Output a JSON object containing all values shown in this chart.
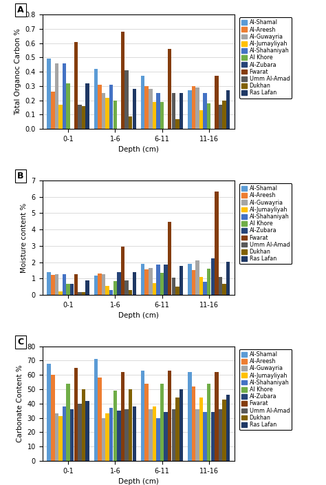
{
  "locations": [
    "Al-Shamal",
    "Al-Areesh",
    "Al-Guwayria",
    "Al-Jumayliyah",
    "Al-Shahaniyah",
    "Al Khore",
    "Al-Zubara",
    "Fwarat",
    "Umm Al-Amad",
    "Dukhan",
    "Ras Lafan"
  ],
  "colors": [
    "#5B9BD5",
    "#ED7D31",
    "#A5A5A5",
    "#FFC000",
    "#4472C4",
    "#70AD47",
    "#264478",
    "#843C0C",
    "#595959",
    "#806000",
    "#1F3864"
  ],
  "depths": [
    "0-1",
    "1-6",
    "6-11",
    "11-16"
  ],
  "chartA": {
    "title": "A",
    "ylabel": "Total Organoc Carbon %",
    "ylim": [
      0.0,
      0.8
    ],
    "yticks": [
      0.0,
      0.1,
      0.2,
      0.3,
      0.4,
      0.5,
      0.6,
      0.7,
      0.8
    ],
    "data": [
      [
        0.49,
        0.42,
        0.37,
        0.27
      ],
      [
        0.26,
        0.31,
        0.3,
        0.3
      ],
      [
        0.46,
        0.25,
        0.28,
        0.29
      ],
      [
        0.17,
        0.22,
        0.19,
        0.13
      ],
      [
        0.46,
        0.31,
        0.25,
        0.25
      ],
      [
        0.32,
        0.2,
        0.19,
        0.18
      ],
      [
        0.0,
        0.0,
        0.0,
        0.0
      ],
      [
        0.61,
        0.68,
        0.56,
        0.37
      ],
      [
        0.17,
        0.41,
        0.25,
        0.17
      ],
      [
        0.16,
        0.09,
        0.07,
        0.2
      ],
      [
        0.32,
        0.28,
        0.25,
        0.27
      ]
    ]
  },
  "chartB": {
    "title": "B",
    "ylabel": "Moisture content %",
    "ylim": [
      0,
      7
    ],
    "yticks": [
      0,
      1,
      2,
      3,
      4,
      5,
      6,
      7
    ],
    "data": [
      [
        1.38,
        1.2,
        1.9,
        1.9
      ],
      [
        1.22,
        1.3,
        1.55,
        1.52
      ],
      [
        1.25,
        1.28,
        1.63,
        2.1
      ],
      [
        0.22,
        0.55,
        0.73,
        1.1
      ],
      [
        1.25,
        0.3,
        1.85,
        0.8
      ],
      [
        0.68,
        0.83,
        1.33,
        1.6
      ],
      [
        0.68,
        1.4,
        1.85,
        2.23
      ],
      [
        1.27,
        2.93,
        4.45,
        6.32
      ],
      [
        0.17,
        0.87,
        1.05,
        1.1
      ],
      [
        0.18,
        0.3,
        0.5,
        0.68
      ],
      [
        0.9,
        1.4,
        1.78,
        2.02
      ]
    ]
  },
  "chartC": {
    "title": "C",
    "ylabel": "Carbonate Content %",
    "ylim": [
      0,
      80
    ],
    "yticks": [
      0,
      10,
      20,
      30,
      40,
      50,
      60,
      70,
      80
    ],
    "data": [
      [
        68,
        71,
        63,
        62
      ],
      [
        60,
        58,
        54,
        52
      ],
      [
        33,
        30,
        36,
        36
      ],
      [
        31,
        33,
        38,
        44
      ],
      [
        38,
        37,
        30,
        34
      ],
      [
        54,
        49,
        54,
        54
      ],
      [
        36,
        35,
        34,
        34
      ],
      [
        65,
        62,
        63,
        62
      ],
      [
        40,
        36,
        36,
        36
      ],
      [
        50,
        50,
        44,
        43
      ],
      [
        42,
        38,
        50,
        46
      ]
    ]
  }
}
